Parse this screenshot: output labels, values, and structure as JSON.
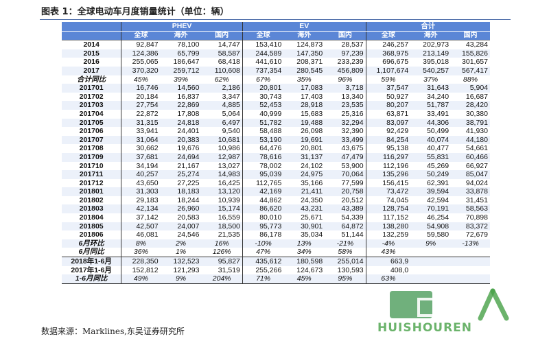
{
  "document": {
    "title": "图表 1：全球电动车月度销量统计（单位：辆）",
    "source": "数据来源：Marklines,东吴证券研究所"
  },
  "table": {
    "groups": [
      "PHEV",
      "EV",
      "合计"
    ],
    "subheaders": [
      "全球",
      "海外",
      "国内",
      "全球",
      "海外",
      "国内",
      "全球",
      "海外",
      "国内"
    ],
    "rows": [
      {
        "label": "2014",
        "cells": [
          "92,847",
          "78,100",
          "14,747",
          "153,410",
          "124,873",
          "28,537",
          "246,257",
          "202,973",
          "43,284"
        ],
        "kind": "year"
      },
      {
        "label": "2015",
        "cells": [
          "124,386",
          "65,799",
          "58,587",
          "244,589",
          "147,350",
          "97,239",
          "368,975",
          "213,149",
          "155,826"
        ],
        "kind": "year"
      },
      {
        "label": "2016",
        "cells": [
          "255,065",
          "186,647",
          "68,418",
          "441,610",
          "208,371",
          "233,239",
          "696,675",
          "395,018",
          "301,657"
        ],
        "kind": "year"
      },
      {
        "label": "2017",
        "cells": [
          "370,320",
          "259,712",
          "110,608",
          "737,354",
          "280,545",
          "456,809",
          "1,107,674",
          "540,257",
          "567,417"
        ],
        "kind": "year"
      },
      {
        "label": "合计同比",
        "cells": [
          "45%",
          "39%",
          "62%",
          "67%",
          "35%",
          "96%",
          "59%",
          "37%",
          "88%"
        ],
        "kind": "pct"
      },
      {
        "label": "201701",
        "cells": [
          "16,746",
          "14,560",
          "2,186",
          "20,801",
          "17,083",
          "3,718",
          "37,547",
          "31,643",
          "5,904"
        ],
        "kind": "month"
      },
      {
        "label": "201702",
        "cells": [
          "20,184",
          "16,837",
          "3,347",
          "30,743",
          "17,403",
          "13,340",
          "50,927",
          "34,240",
          "16,687"
        ],
        "kind": "month"
      },
      {
        "label": "201703",
        "cells": [
          "27,754",
          "22,869",
          "4,885",
          "52,453",
          "28,918",
          "23,535",
          "80,207",
          "51,787",
          "28,420"
        ],
        "kind": "month"
      },
      {
        "label": "201704",
        "cells": [
          "22,872",
          "17,808",
          "5,064",
          "40,999",
          "15,683",
          "25,316",
          "63,871",
          "33,491",
          "30,380"
        ],
        "kind": "month"
      },
      {
        "label": "201705",
        "cells": [
          "31,315",
          "24,818",
          "6,497",
          "51,782",
          "19,488",
          "32,294",
          "83,097",
          "44,306",
          "38,791"
        ],
        "kind": "month"
      },
      {
        "label": "201706",
        "cells": [
          "33,941",
          "24,401",
          "9,540",
          "58,488",
          "26,098",
          "32,390",
          "92,429",
          "50,499",
          "41,930"
        ],
        "kind": "month"
      },
      {
        "label": "201707",
        "cells": [
          "31,064",
          "20,383",
          "10,681",
          "53,190",
          "19,691",
          "33,499",
          "84,254",
          "40,074",
          "44,180"
        ],
        "kind": "month"
      },
      {
        "label": "201708",
        "cells": [
          "30,662",
          "19,676",
          "10,986",
          "64,476",
          "20,801",
          "43,675",
          "95,138",
          "40,477",
          "54,661"
        ],
        "kind": "month"
      },
      {
        "label": "201709",
        "cells": [
          "37,681",
          "24,694",
          "12,987",
          "78,616",
          "31,137",
          "47,479",
          "116,297",
          "55,831",
          "60,466"
        ],
        "kind": "month"
      },
      {
        "label": "201710",
        "cells": [
          "34,194",
          "21,167",
          "13,027",
          "78,002",
          "24,102",
          "53,900",
          "112,196",
          "45,269",
          "66,927"
        ],
        "kind": "month"
      },
      {
        "label": "201711",
        "cells": [
          "40,257",
          "25,274",
          "14,983",
          "95,039",
          "24,975",
          "70,064",
          "135,296",
          "50,249",
          "85,047"
        ],
        "kind": "month"
      },
      {
        "label": "201712",
        "cells": [
          "43,650",
          "27,225",
          "16,425",
          "112,765",
          "35,166",
          "77,599",
          "156,415",
          "62,391",
          "94,024"
        ],
        "kind": "month"
      },
      {
        "label": "201801",
        "cells": [
          "31,303",
          "18,183",
          "13,120",
          "42,169",
          "21,411",
          "20,758",
          "73,472",
          "39,594",
          "33,878"
        ],
        "kind": "month"
      },
      {
        "label": "201802",
        "cells": [
          "29,183",
          "18,244",
          "10,939",
          "44,862",
          "24,350",
          "20,512",
          "74,045",
          "42,594",
          "31,451"
        ],
        "kind": "month"
      },
      {
        "label": "201803",
        "cells": [
          "42,134",
          "26,960",
          "15,174",
          "86,620",
          "43,231",
          "43,389",
          "128,754",
          "70,191",
          "58,563"
        ],
        "kind": "month"
      },
      {
        "label": "201804",
        "cells": [
          "37,142",
          "20,583",
          "16,559",
          "80,010",
          "25,671",
          "54,339",
          "117,152",
          "46,254",
          "70,898"
        ],
        "kind": "month"
      },
      {
        "label": "201805",
        "cells": [
          "42,507",
          "24,007",
          "18,500",
          "95,773",
          "30,901",
          "64,872",
          "138,280",
          "54,908",
          "83,372"
        ],
        "kind": "month"
      },
      {
        "label": "201806",
        "cells": [
          "46,081",
          "24,546",
          "21,535",
          "86,178",
          "35,034",
          "51,144",
          "132,259",
          "59,580",
          "72,679"
        ],
        "kind": "month"
      },
      {
        "label": "6月环比",
        "cells": [
          "8%",
          "2%",
          "16%",
          "-10%",
          "13%",
          "-21%",
          "-4%",
          "9%",
          "-13%"
        ],
        "kind": "pct"
      },
      {
        "label": "6月同比",
        "cells": [
          "36%",
          "1%",
          "126%",
          "47%",
          "34%",
          "58%",
          "43%",
          "",
          ""
        ],
        "kind": "pct"
      },
      {
        "label": "2018年1-6月",
        "cells": [
          "228,350",
          "132,523",
          "95,827",
          "435,612",
          "180,598",
          "255,014",
          "663,9",
          "",
          ""
        ],
        "kind": "sum"
      },
      {
        "label": "2017年1-6月",
        "cells": [
          "152,812",
          "121,293",
          "31,519",
          "255,266",
          "124,673",
          "130,593",
          "408,0",
          "",
          ""
        ],
        "kind": "sum"
      },
      {
        "label": "1-6月同比",
        "cells": [
          "49%",
          "9%",
          "204%",
          "71%",
          "45%",
          "95%",
          "63%",
          "",
          ""
        ],
        "kind": "pct"
      }
    ]
  },
  "watermark": {
    "text": "HUISHOUREN",
    "logo_icon": "recycle-logo-icon",
    "color": "#46a046"
  }
}
